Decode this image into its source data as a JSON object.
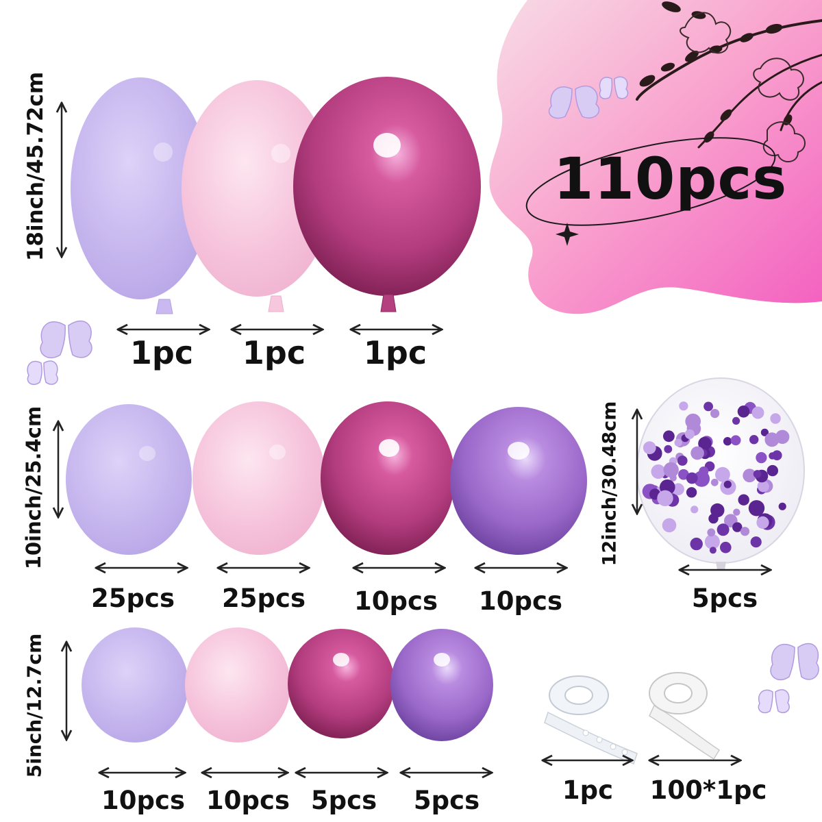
{
  "total": "110pcs",
  "sizes": {
    "row1": "18inch/45.72cm",
    "row2": "10inch/25.4cm",
    "confetti": "12inch/30.48cm",
    "row3": "5inch/12.7cm"
  },
  "quantities": {
    "row1": [
      "1pc",
      "1pc",
      "1pc"
    ],
    "row2": [
      "25pcs",
      "25pcs",
      "10pcs",
      "10pcs"
    ],
    "confetti": "5pcs",
    "row3": [
      "10pcs",
      "10pcs",
      "5pcs",
      "5pcs"
    ],
    "accessories": [
      "1pc",
      "100*1pc"
    ]
  },
  "colors": {
    "lavender": "#c6b6ee",
    "pastel_pink": "#f6c4dc",
    "metallic_rose": "#b23c7e",
    "metallic_purple": "#9a68c9",
    "confetti": "#5a2491",
    "backdrop_pink": "#f36fbf"
  }
}
